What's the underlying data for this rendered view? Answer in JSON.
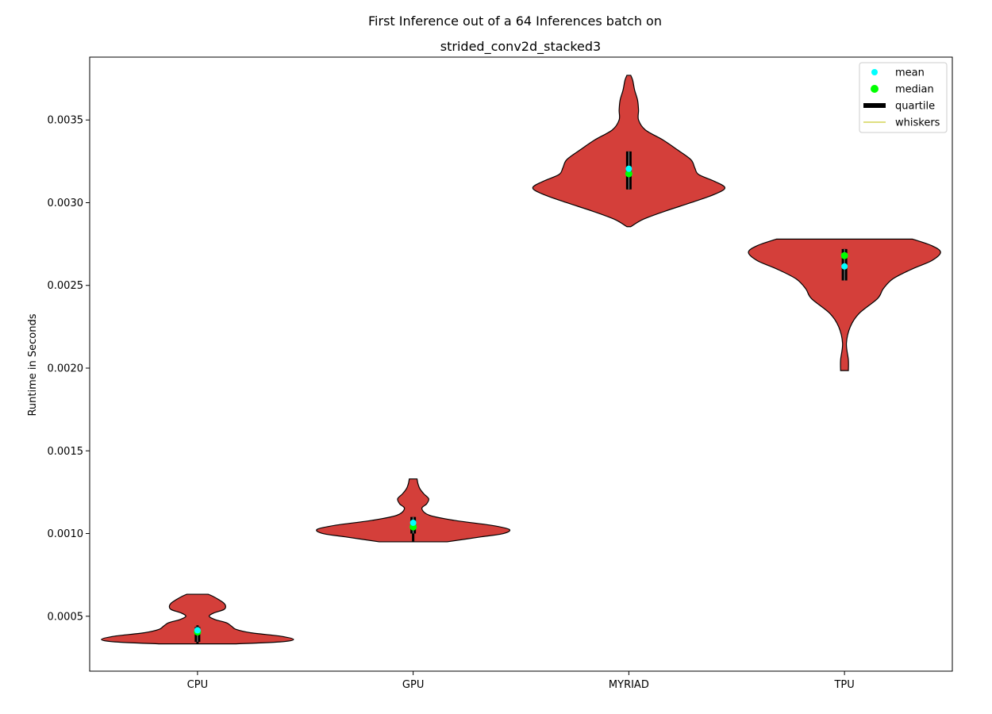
{
  "chart_data": {
    "type": "violin",
    "title": "First Inference out of a 64 Inferences batch on",
    "subtitle": "strided_conv2d_stacked3",
    "ylabel": "Runtime in Seconds",
    "xlabel": "",
    "categories": [
      "CPU",
      "GPU",
      "MYRIAD",
      "TPU"
    ],
    "ylim": [
      0.000168,
      0.00388
    ],
    "yticks": [
      0.0005,
      0.001,
      0.0015,
      0.002,
      0.0025,
      0.003,
      0.0035
    ],
    "ytick_labels": [
      "0.0005",
      "0.0010",
      "0.0015",
      "0.0020",
      "0.0025",
      "0.0030",
      "0.0035"
    ],
    "grid": false,
    "legend_position": "top-right",
    "violin_color": "#d43f3a",
    "violins": [
      {
        "name": "CPU",
        "min": 0.000333,
        "max": 0.000633,
        "q1": 0.000345,
        "median": 0.000405,
        "q3": 0.000435,
        "mean": 0.000415,
        "whisker_low": 0.000333,
        "whisker_high": 0.000445,
        "density": [
          [
            0.000333,
            0.4
          ],
          [
            0.000345,
            0.85
          ],
          [
            0.00036,
            0.99
          ],
          [
            0.00038,
            0.85
          ],
          [
            0.0004,
            0.55
          ],
          [
            0.00042,
            0.4
          ],
          [
            0.00044,
            0.35
          ],
          [
            0.00046,
            0.3
          ],
          [
            0.00048,
            0.18
          ],
          [
            0.0005,
            0.12
          ],
          [
            0.00052,
            0.17
          ],
          [
            0.00054,
            0.27
          ],
          [
            0.00056,
            0.29
          ],
          [
            0.00058,
            0.27
          ],
          [
            0.0006,
            0.22
          ],
          [
            0.00062,
            0.16
          ],
          [
            0.000633,
            0.11
          ]
        ]
      },
      {
        "name": "GPU",
        "min": 0.00095,
        "max": 0.00133,
        "q1": 0.001,
        "median": 0.00104,
        "q3": 0.0011,
        "mean": 0.001065,
        "whisker_low": 0.00095,
        "whisker_high": 0.0011,
        "density": [
          [
            0.00095,
            0.35
          ],
          [
            0.00098,
            0.7
          ],
          [
            0.001,
            0.93
          ],
          [
            0.001025,
            0.99
          ],
          [
            0.00105,
            0.8
          ],
          [
            0.00108,
            0.42
          ],
          [
            0.00111,
            0.17
          ],
          [
            0.00115,
            0.09
          ],
          [
            0.00118,
            0.14
          ],
          [
            0.00121,
            0.16
          ],
          [
            0.00124,
            0.11
          ],
          [
            0.00127,
            0.07
          ],
          [
            0.0013,
            0.05
          ],
          [
            0.00133,
            0.04
          ]
        ]
      },
      {
        "name": "MYRIAD",
        "min": 0.002855,
        "max": 0.00377,
        "q1": 0.00308,
        "median": 0.003175,
        "q3": 0.00331,
        "mean": 0.003205,
        "whisker_low": 0.00308,
        "whisker_high": 0.00331,
        "density": [
          [
            0.002855,
            0.02
          ],
          [
            0.0029,
            0.15
          ],
          [
            0.00295,
            0.38
          ],
          [
            0.003,
            0.64
          ],
          [
            0.00305,
            0.88
          ],
          [
            0.00309,
            0.99
          ],
          [
            0.00313,
            0.88
          ],
          [
            0.00317,
            0.72
          ],
          [
            0.00321,
            0.68
          ],
          [
            0.00326,
            0.64
          ],
          [
            0.00332,
            0.5
          ],
          [
            0.00338,
            0.35
          ],
          [
            0.00344,
            0.17
          ],
          [
            0.0035,
            0.1
          ],
          [
            0.00356,
            0.1
          ],
          [
            0.00362,
            0.09
          ],
          [
            0.00368,
            0.06
          ],
          [
            0.00374,
            0.04
          ],
          [
            0.00377,
            0.02
          ]
        ]
      },
      {
        "name": "TPU",
        "min": 0.001985,
        "max": 0.00278,
        "q1": 0.00253,
        "median": 0.00268,
        "q3": 0.00272,
        "mean": 0.002615,
        "whisker_low": 0.00253,
        "whisker_high": 0.00272,
        "density": [
          [
            0.001985,
            0.04
          ],
          [
            0.00205,
            0.04
          ],
          [
            0.00215,
            0.02
          ],
          [
            0.00225,
            0.06
          ],
          [
            0.00233,
            0.15
          ],
          [
            0.00242,
            0.34
          ],
          [
            0.00248,
            0.4
          ],
          [
            0.00254,
            0.5
          ],
          [
            0.0026,
            0.7
          ],
          [
            0.00265,
            0.9
          ],
          [
            0.0027,
            0.99
          ],
          [
            0.00274,
            0.9
          ],
          [
            0.00278,
            0.7
          ]
        ]
      }
    ],
    "legend": [
      {
        "label": "mean",
        "type": "point",
        "color": "#00ffff"
      },
      {
        "label": "median",
        "type": "point",
        "color": "#00ff00"
      },
      {
        "label": "quartile",
        "type": "thick-line",
        "color": "#000000"
      },
      {
        "label": "whiskers",
        "type": "thin-line",
        "color": "#bfbf00"
      }
    ]
  }
}
